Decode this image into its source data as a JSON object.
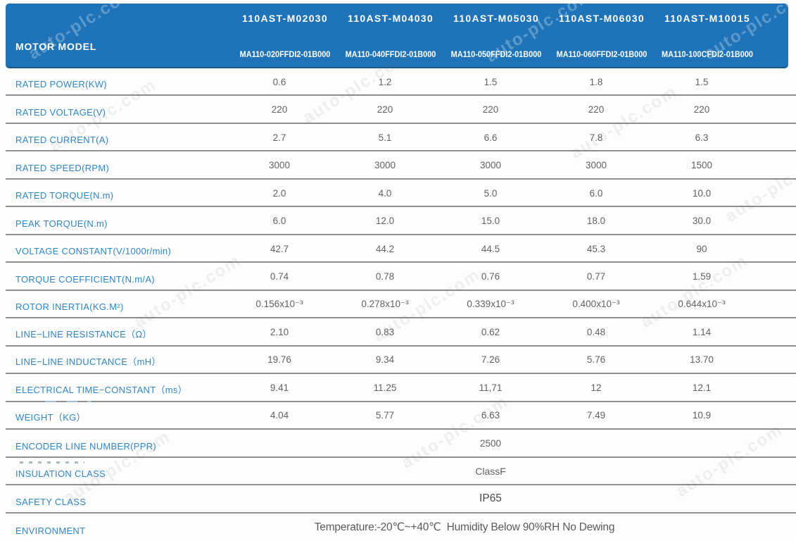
{
  "watermark": {
    "text": "auto-plc.com"
  },
  "colors": {
    "header_bg": "#1e73b9",
    "label_blue": "#2e86c5",
    "value_gray": "#626262",
    "line_gray": "#8d8d8d"
  },
  "header": {
    "motor_model_label": "MOTOR MODEL",
    "columns": [
      {
        "model": "110AST-M02030",
        "part_number": "MA110-020FFDI2-01B000"
      },
      {
        "model": "110AST-M04030",
        "part_number": "MA110-040FFDI2-01B000"
      },
      {
        "model": "110AST-M05030",
        "part_number": "MA110-050FFDI2-01B000"
      },
      {
        "model": "110AST-M06030",
        "part_number": "MA110-060FFDI2-01B000"
      },
      {
        "model": "110AST-M10015",
        "part_number": "MA110-100CFDI2-01B000"
      }
    ]
  },
  "table": {
    "rows": [
      {
        "label": "RATED POWER(KW)",
        "values": [
          "0.6",
          "1.2",
          "1.5",
          "1.8",
          "1.5"
        ]
      },
      {
        "label": "RATED VOLTAGE(V)",
        "values": [
          "220",
          "220",
          "220",
          "220",
          "220"
        ]
      },
      {
        "label": "RATED CURRENT(A)",
        "values": [
          "2.7",
          "5.1",
          "6.6",
          "7.8",
          "6.3"
        ]
      },
      {
        "label": "RATED SPEED(RPM)",
        "values": [
          "3000",
          "3000",
          "3000",
          "3000",
          "1500"
        ]
      },
      {
        "label": "RATED TORQUE(N.m)",
        "values": [
          "2.0",
          "4.0",
          "5.0",
          "6.0",
          "10.0"
        ]
      },
      {
        "label": "PEAK TORQUE(N.m)",
        "values": [
          "6.0",
          "12.0",
          "15.0",
          "18.0",
          "30.0"
        ]
      },
      {
        "label": "VOLTAGE CONSTANT(V/1000r/min)",
        "values": [
          "42.7",
          "44.2",
          "44.5",
          "45.3",
          "90"
        ]
      },
      {
        "label": "TORQUE COEFFICIENT(N.m/A)",
        "values": [
          "0.74",
          "0.78",
          "0.76",
          "0.77",
          "1.59"
        ]
      },
      {
        "label": "ROTOR INERTIA(KG.M²)",
        "values": [
          "0.156x10⁻³",
          "0.278x10⁻³",
          "0.339x10⁻³",
          "0.400x10⁻³",
          "0.644x10⁻³"
        ]
      },
      {
        "label": "LINE−LINE RESISTANCE（Ω）",
        "values": [
          "2.10",
          "0.83",
          "0.62",
          "0.48",
          "1.14"
        ]
      },
      {
        "label": "LINE−LINE INDUCTANCE（mH）",
        "values": [
          "19.76",
          "9.34",
          "7.26",
          "5.76",
          "13.70"
        ]
      },
      {
        "label": "ELECTRICAL TIME−CONSTANT（ms）",
        "values": [
          "9.41",
          "11.25",
          "11,71",
          "12",
          "12.1"
        ]
      },
      {
        "label": "WEIGHT（KG）",
        "values": [
          "4.04",
          "5.77",
          "6.63",
          "7.49",
          "10.9"
        ]
      }
    ],
    "span_rows": [
      {
        "label": "ENCODER LINE NUMBER(PPR)",
        "value": "2500"
      },
      {
        "label": "INSULATION CLASS",
        "value": "ClassF"
      },
      {
        "label": "SAFETY CLASS",
        "value": "IP65"
      },
      {
        "label": "ENVIRONMENT",
        "value": "Temperature:-20℃~+40℃  Humidity Below 90%RH No Dewing"
      }
    ]
  }
}
